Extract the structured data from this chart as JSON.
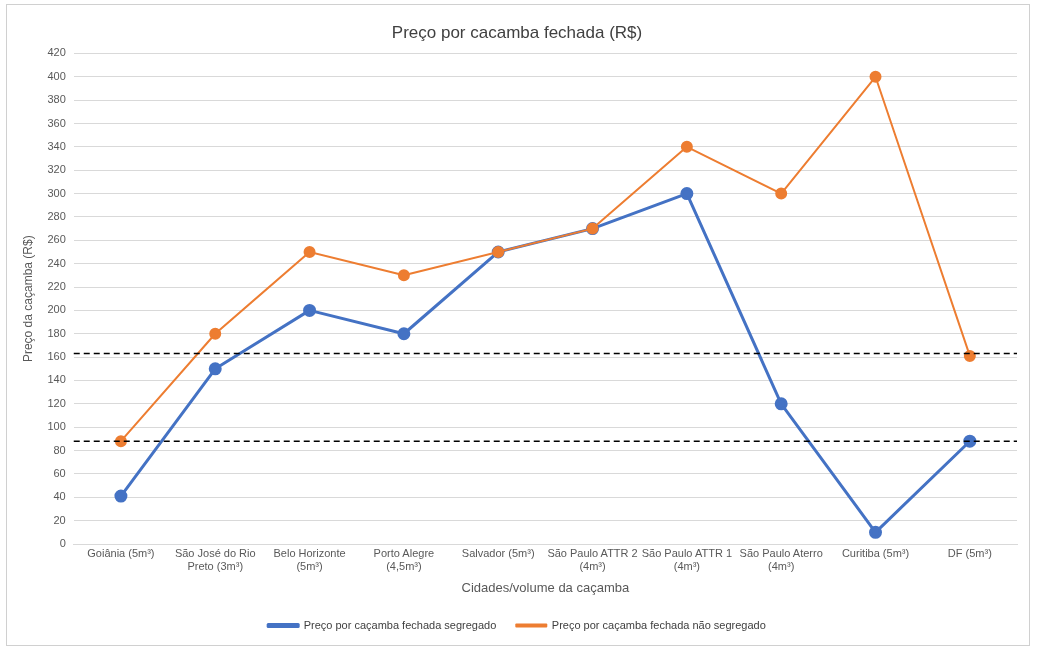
{
  "chart_data": {
    "type": "line",
    "title": "Preço por cacamba fechada (R$)",
    "xlabel": "Cidades/volume da caçamba",
    "ylabel": "Preço da caçamba (R$)",
    "categories": [
      "Goiânia (5m³)",
      "São José do Rio Preto (3m³)",
      "Belo Horizonte (5m³)",
      "Porto Alegre (4,5m³)",
      "Salvador (5m³)",
      "São Paulo ATTR 2 (4m³)",
      "São Paulo ATTR 1 (4m³)",
      "São Paulo Aterro (4m³)",
      "Curitiba (5m³)",
      "DF (5m³)"
    ],
    "series": [
      {
        "name": "Preço por caçamba fechada segregado",
        "color": "#4472c4",
        "values": [
          41,
          150,
          200,
          180,
          250,
          270,
          300,
          120,
          10,
          88
        ]
      },
      {
        "name": "Preço por caçamba fechada não segregado",
        "color": "#ed7d31",
        "values": [
          88,
          180,
          250,
          230,
          250,
          270,
          340,
          300,
          400,
          161
        ]
      }
    ],
    "ylim": [
      0,
      420
    ],
    "yticks": [
      0,
      20,
      40,
      60,
      80,
      100,
      120,
      140,
      160,
      180,
      200,
      220,
      240,
      260,
      280,
      300,
      320,
      340,
      360,
      380,
      400,
      420
    ],
    "ref_lines": [
      {
        "axis": "y",
        "value": 163,
        "color": "#000000",
        "line_style": "dashed"
      },
      {
        "axis": "y",
        "value": 88,
        "color": "#000000",
        "line_style": "dashed"
      }
    ],
    "grid": "y",
    "legend": "bottom",
    "marker": "circle",
    "line_style": "solid"
  }
}
